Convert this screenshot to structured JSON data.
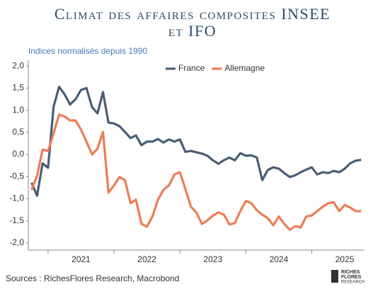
{
  "chart_data": {
    "type": "line",
    "title": "Climat des affaires composites INSEE et IFO",
    "subtitle": "Indices normalisés depuis 1990",
    "source": "Sources : RichesFlores Research, Macrobond",
    "logo": [
      "RICHES",
      "FLORES",
      "RESEARCH"
    ],
    "x": [
      2020.75,
      2020.833,
      2020.917,
      2021,
      2021.083,
      2021.167,
      2021.25,
      2021.333,
      2021.417,
      2021.5,
      2021.583,
      2021.667,
      2021.75,
      2021.833,
      2021.917,
      2022,
      2022.083,
      2022.167,
      2022.25,
      2022.333,
      2022.417,
      2022.5,
      2022.583,
      2022.667,
      2022.75,
      2022.833,
      2022.917,
      2023,
      2023.083,
      2023.167,
      2023.25,
      2023.333,
      2023.417,
      2023.5,
      2023.583,
      2023.667,
      2023.75,
      2023.833,
      2023.917,
      2024,
      2024.083,
      2024.167,
      2024.25,
      2024.333,
      2024.417,
      2024.5,
      2024.583,
      2024.667,
      2024.75,
      2024.833,
      2024.917,
      2025,
      2025.083,
      2025.167,
      2025.25,
      2025.333,
      2025.417,
      2025.5,
      2025.583,
      2025.667,
      2025.75
    ],
    "series": [
      {
        "name": "France",
        "color": "#4a5d75",
        "values": [
          -0.64,
          -0.93,
          -0.2,
          -0.3,
          1.08,
          1.53,
          1.36,
          1.13,
          1.25,
          1.46,
          1.5,
          1.07,
          0.93,
          1.41,
          0.72,
          0.7,
          0.64,
          0.51,
          0.37,
          0.43,
          0.21,
          0.29,
          0.29,
          0.35,
          0.27,
          0.34,
          0.29,
          0.34,
          0.06,
          0.08,
          0.05,
          0.02,
          -0.03,
          -0.13,
          -0.21,
          -0.13,
          -0.07,
          -0.13,
          0.03,
          -0.03,
          -0.02,
          -0.07,
          -0.58,
          -0.35,
          -0.29,
          -0.32,
          -0.42,
          -0.51,
          -0.47,
          -0.4,
          -0.34,
          -0.29,
          -0.45,
          -0.4,
          -0.42,
          -0.37,
          -0.4,
          -0.32,
          -0.2,
          -0.14,
          -0.12
        ]
      },
      {
        "name": "Allemagne",
        "color": "#ed7d55",
        "values": [
          -0.8,
          -0.48,
          0.11,
          0.08,
          0.48,
          0.9,
          0.86,
          0.77,
          0.77,
          0.56,
          0.29,
          0.0,
          0.13,
          0.51,
          -0.86,
          -0.7,
          -0.51,
          -0.58,
          -1.1,
          -1.02,
          -1.57,
          -1.63,
          -1.4,
          -1.02,
          -0.8,
          -0.7,
          -0.45,
          -0.4,
          -0.78,
          -1.18,
          -1.31,
          -1.57,
          -1.49,
          -1.38,
          -1.31,
          -1.36,
          -1.58,
          -1.55,
          -1.28,
          -1.05,
          -1.1,
          -1.26,
          -1.36,
          -1.44,
          -1.6,
          -1.4,
          -1.57,
          -1.7,
          -1.62,
          -1.65,
          -1.4,
          -1.38,
          -1.28,
          -1.18,
          -1.1,
          -1.08,
          -1.28,
          -1.14,
          -1.2,
          -1.28,
          -1.28
        ]
      }
    ],
    "xlim": [
      2020.7,
      2025.8
    ],
    "xticks": [
      2021,
      2022,
      2023,
      2024,
      2025
    ],
    "xtick_labels": [
      {
        "value": 2021.5,
        "label": "2021"
      },
      {
        "value": 2022.5,
        "label": "2022"
      },
      {
        "value": 2023.5,
        "label": "2023"
      },
      {
        "value": 2024.5,
        "label": "2024"
      },
      {
        "value": 2025.5,
        "label": "2025"
      }
    ],
    "ylim": [
      -2.16,
      2.13
    ],
    "yticks": [
      {
        "value": 2,
        "label": "2,0"
      },
      {
        "value": 1.5,
        "label": "1,5"
      },
      {
        "value": 1,
        "label": "1,0"
      },
      {
        "value": 0.5,
        "label": "0,5"
      },
      {
        "value": 0,
        "label": "0,0"
      },
      {
        "value": -0.5,
        "label": "-0,5"
      },
      {
        "value": -1,
        "label": "-1,0"
      },
      {
        "value": -1.5,
        "label": "-1,5"
      },
      {
        "value": -2,
        "label": "-2,0"
      }
    ],
    "legend": "top"
  }
}
